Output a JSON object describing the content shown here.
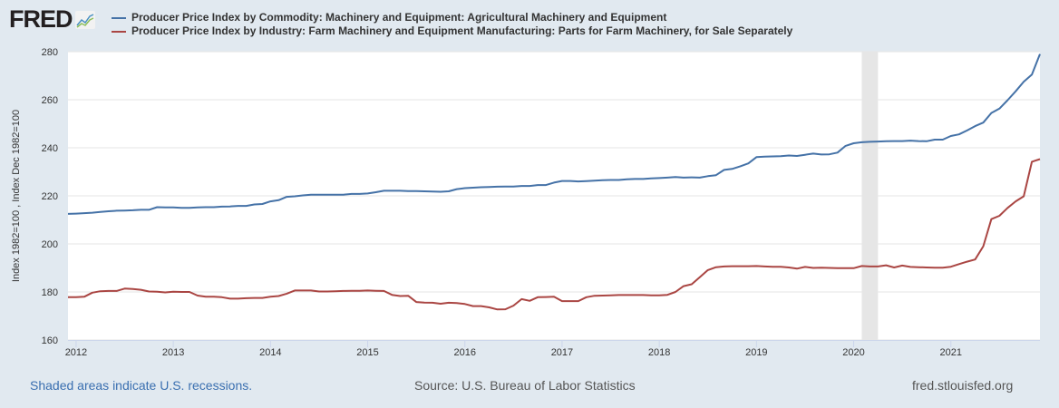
{
  "header": {
    "logo_text": "FRED",
    "legend": [
      {
        "label": "Producer Price Index by Commodity: Machinery and Equipment: Agricultural Machinery and Equipment",
        "color": "#4572a7"
      },
      {
        "label": "Producer Price Index by Industry: Farm Machinery and Equipment Manufacturing: Parts for Farm Machinery, for Sale Separately",
        "color": "#aa4643"
      }
    ]
  },
  "footer": {
    "recessions_note": "Shaded areas indicate U.S. recessions.",
    "source": "Source: U.S. Bureau of Labor Statistics",
    "site": "fred.stlouisfed.org"
  },
  "chart_data": {
    "type": "line",
    "ylabel": "Index 1982=100 , Index Dec 1982=100",
    "ylim": [
      160,
      280
    ],
    "yticks": [
      160,
      180,
      200,
      220,
      240,
      260,
      280
    ],
    "xticks": [
      "2012",
      "2013",
      "2014",
      "2015",
      "2016",
      "2017",
      "2018",
      "2019",
      "2020",
      "2021"
    ],
    "grid": true,
    "legend_position": "top",
    "recessions": [
      [
        "2020-02",
        "2020-04"
      ]
    ],
    "recession_color": "#e6e6e6",
    "x": [
      "2011-12",
      "2012-01",
      "2012-02",
      "2012-03",
      "2012-04",
      "2012-05",
      "2012-06",
      "2012-07",
      "2012-08",
      "2012-09",
      "2012-10",
      "2012-11",
      "2012-12",
      "2013-01",
      "2013-02",
      "2013-03",
      "2013-04",
      "2013-05",
      "2013-06",
      "2013-07",
      "2013-08",
      "2013-09",
      "2013-10",
      "2013-11",
      "2013-12",
      "2014-01",
      "2014-02",
      "2014-03",
      "2014-04",
      "2014-05",
      "2014-06",
      "2014-07",
      "2014-08",
      "2014-09",
      "2014-10",
      "2014-11",
      "2014-12",
      "2015-01",
      "2015-02",
      "2015-03",
      "2015-04",
      "2015-05",
      "2015-06",
      "2015-07",
      "2015-08",
      "2015-09",
      "2015-10",
      "2015-11",
      "2015-12",
      "2016-01",
      "2016-02",
      "2016-03",
      "2016-04",
      "2016-05",
      "2016-06",
      "2016-07",
      "2016-08",
      "2016-09",
      "2016-10",
      "2016-11",
      "2016-12",
      "2017-01",
      "2017-02",
      "2017-03",
      "2017-04",
      "2017-05",
      "2017-06",
      "2017-07",
      "2017-08",
      "2017-09",
      "2017-10",
      "2017-11",
      "2017-12",
      "2018-01",
      "2018-02",
      "2018-03",
      "2018-04",
      "2018-05",
      "2018-06",
      "2018-07",
      "2018-08",
      "2018-09",
      "2018-10",
      "2018-11",
      "2018-12",
      "2019-01",
      "2019-02",
      "2019-03",
      "2019-04",
      "2019-05",
      "2019-06",
      "2019-07",
      "2019-08",
      "2019-09",
      "2019-10",
      "2019-11",
      "2019-12",
      "2020-01",
      "2020-02",
      "2020-03",
      "2020-04",
      "2020-05",
      "2020-06",
      "2020-07",
      "2020-08",
      "2020-09",
      "2020-10",
      "2020-11",
      "2020-12",
      "2021-01",
      "2021-02",
      "2021-03",
      "2021-04",
      "2021-05",
      "2021-06",
      "2021-07",
      "2021-08",
      "2021-09",
      "2021-10",
      "2021-11",
      "2021-12"
    ],
    "series": [
      {
        "name": "Producer Price Index by Commodity: Machinery and Equipment: Agricultural Machinery and Equipment",
        "color": "#4572a7",
        "values": [
          212.5,
          212.6,
          212.8,
          213.0,
          213.3,
          213.6,
          213.8,
          213.9,
          214.0,
          214.2,
          214.2,
          215.3,
          215.2,
          215.2,
          215.0,
          215.0,
          215.2,
          215.3,
          215.3,
          215.5,
          215.6,
          215.8,
          215.8,
          216.4,
          216.6,
          217.7,
          218.2,
          219.6,
          219.8,
          220.2,
          220.5,
          220.5,
          220.5,
          220.5,
          220.5,
          220.8,
          220.8,
          221.0,
          221.5,
          222.1,
          222.1,
          222.1,
          222.0,
          222.0,
          221.9,
          221.8,
          221.7,
          221.9,
          222.8,
          223.2,
          223.4,
          223.6,
          223.7,
          223.8,
          223.9,
          223.9,
          224.1,
          224.1,
          224.5,
          224.5,
          225.5,
          226.2,
          226.2,
          226.0,
          226.1,
          226.3,
          226.5,
          226.6,
          226.6,
          226.9,
          227.0,
          227.0,
          227.3,
          227.4,
          227.6,
          227.8,
          227.6,
          227.7,
          227.6,
          228.2,
          228.6,
          230.8,
          231.2,
          232.3,
          233.5,
          236.1,
          236.3,
          236.4,
          236.5,
          236.8,
          236.6,
          237.1,
          237.6,
          237.2,
          237.3,
          238.0,
          240.8,
          241.9,
          242.3,
          242.5,
          242.6,
          242.7,
          242.8,
          242.8,
          243.0,
          242.8,
          242.7,
          243.4,
          243.4,
          244.9,
          245.6,
          247.2,
          249.0,
          250.5,
          254.5,
          256.3,
          259.8,
          263.5,
          267.5,
          270.5,
          279.0
        ]
      },
      {
        "name": "Producer Price Index by Industry: Farm Machinery and Equipment Manufacturing: Parts for Farm Machinery, for Sale Separately",
        "color": "#aa4643",
        "values": [
          177.8,
          177.8,
          178.0,
          179.7,
          180.3,
          180.4,
          180.4,
          181.4,
          181.2,
          180.9,
          180.2,
          180.1,
          179.8,
          180.1,
          180.0,
          180.0,
          178.5,
          178.0,
          178.0,
          177.8,
          177.2,
          177.2,
          177.4,
          177.5,
          177.5,
          178.0,
          178.3,
          179.3,
          180.6,
          180.6,
          180.6,
          180.2,
          180.2,
          180.3,
          180.4,
          180.5,
          180.5,
          180.6,
          180.5,
          180.4,
          178.8,
          178.3,
          178.4,
          175.8,
          175.6,
          175.5,
          175.1,
          175.5,
          175.4,
          175.0,
          174.1,
          174.1,
          173.6,
          172.7,
          172.8,
          174.3,
          177.0,
          176.3,
          177.8,
          177.9,
          178.0,
          176.2,
          176.2,
          176.2,
          177.8,
          178.4,
          178.5,
          178.6,
          178.7,
          178.7,
          178.7,
          178.7,
          178.6,
          178.6,
          178.8,
          180.0,
          182.4,
          183.2,
          186.1,
          189.1,
          190.3,
          190.6,
          190.7,
          190.7,
          190.7,
          190.8,
          190.6,
          190.5,
          190.5,
          190.2,
          189.7,
          190.4,
          190.0,
          190.1,
          190.0,
          189.9,
          189.9,
          189.9,
          190.8,
          190.6,
          190.6,
          191.1,
          190.2,
          191.0,
          190.4,
          190.3,
          190.2,
          190.1,
          190.1,
          190.5,
          191.6,
          192.6,
          193.5,
          199.0,
          210.3,
          211.7,
          215.0,
          217.7,
          219.8,
          234.2,
          235.3
        ]
      }
    ]
  }
}
